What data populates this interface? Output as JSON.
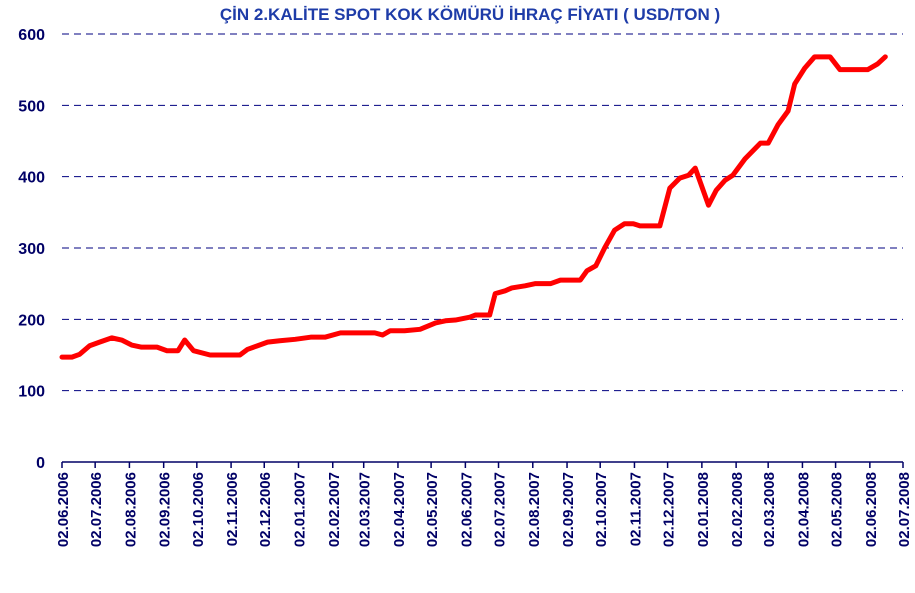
{
  "chart_data": {
    "type": "line",
    "title": "ÇİN 2.KALİTE SPOT KOK KÖMÜRÜ İHRAÇ FİYATI ( USD/TON )",
    "x": [
      "02.06.2006",
      "11.06.2006",
      "18.06.2006",
      "27.06.2006",
      "06.07.2006",
      "17.07.2006",
      "26.07.2006",
      "04.08.2006",
      "13.08.2006",
      "27.08.2006",
      "05.09.2006",
      "15.09.2006",
      "21.09.2006",
      "29.09.2006",
      "14.10.2006",
      "10.11.2006",
      "17.11.2006",
      "26.11.2006",
      "05.12.2006",
      "16.12.2006",
      "30.12.2006",
      "13.01.2007",
      "26.01.2007",
      "09.02.2007",
      "12.03.2007",
      "19.03.2007",
      "26.03.2007",
      "08.04.2007",
      "22.04.2007",
      "06.05.2007",
      "15.05.2007",
      "24.05.2007",
      "06.06.2007",
      "11.06.2007",
      "24.06.2007",
      "29.06.2007",
      "08.07.2007",
      "14.07.2007",
      "26.07.2007",
      "04.08.2007",
      "18.08.2007",
      "27.08.2007",
      "14.09.2007",
      "20.09.2007",
      "28.09.2007",
      "06.10.2007",
      "15.10.2007",
      "24.10.2007",
      "01.11.2007",
      "07.11.2007",
      "25.11.2007",
      "04.12.2007",
      "13.12.2007",
      "21.12.2007",
      "27.12.2007",
      "08.01.2008",
      "15.01.2008",
      "23.01.2008",
      "30.01.2008",
      "10.02.2008",
      "24.02.2008",
      "02.03.2008",
      "11.03.2008",
      "20.03.2008",
      "26.03.2008",
      "04.04.2008",
      "13.04.2008",
      "27.04.2008",
      "06.05.2008",
      "31.05.2008",
      "09.06.2008",
      "16.06.2008"
    ],
    "series": [
      {
        "name": "USD/TON",
        "color": "#ff0000",
        "values": [
          147,
          147,
          151,
          163,
          168,
          174,
          171,
          164,
          161,
          161,
          156,
          156,
          171,
          156,
          150,
          150,
          158,
          163,
          168,
          170,
          172,
          175,
          175,
          181,
          181,
          178,
          184,
          184,
          186,
          195,
          198,
          199,
          203,
          206,
          206,
          236,
          240,
          244,
          247,
          250,
          250,
          255,
          255,
          268,
          275,
          300,
          325,
          334,
          334,
          331,
          331,
          384,
          398,
          402,
          412,
          360,
          381,
          395,
          402,
          425,
          447,
          447,
          473,
          492,
          530,
          552,
          568,
          568,
          550,
          550,
          558,
          568
        ]
      }
    ],
    "xticks": [
      "02.06.2006",
      "02.07.2006",
      "02.08.2006",
      "02.09.2006",
      "02.10.2006",
      "02.11.2006",
      "02.12.2006",
      "02.01.2007",
      "02.02.2007",
      "02.03.2007",
      "02.04.2007",
      "02.05.2007",
      "02.06.2007",
      "02.07.2007",
      "02.08.2007",
      "02.09.2007",
      "02.10.2007",
      "02.11.2007",
      "02.12.2007",
      "02.01.2008",
      "02.02.2008",
      "02.03.2008",
      "02.04.2008",
      "02.05.2008",
      "02.06.2008",
      "02.07.2008"
    ],
    "ylim": [
      0,
      600
    ],
    "yticks": [
      0,
      100,
      200,
      300,
      400,
      500,
      600
    ],
    "grid": true
  }
}
